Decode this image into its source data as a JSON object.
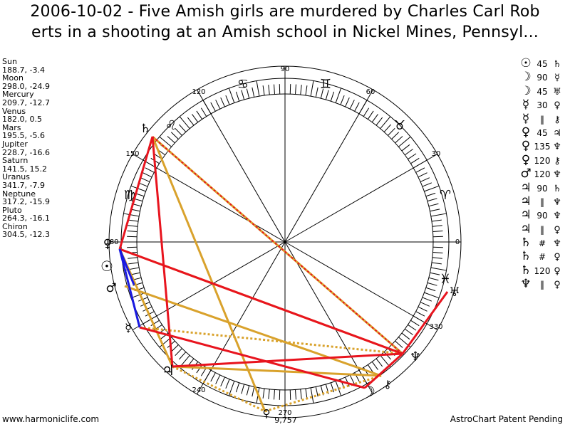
{
  "title": {
    "line1": "2006-10-02 - Five Amish girls are murdered by Charles Carl Rob",
    "line2": "erts in a shooting at an Amish school in Nickel Mines, Pennsyl..."
  },
  "positions": [
    {
      "name": "Sun",
      "value": "188.7, -3.4"
    },
    {
      "name": "Moon",
      "value": "298.0, -24.9"
    },
    {
      "name": "Mercury",
      "value": "209.7, -12.7"
    },
    {
      "name": "Venus",
      "value": "182.0, 0.5"
    },
    {
      "name": "Mars",
      "value": "195.5, -5.6"
    },
    {
      "name": "Jupiter",
      "value": "228.7, -16.6"
    },
    {
      "name": "Saturn",
      "value": "141.5, 15.2"
    },
    {
      "name": "Uranus",
      "value": "341.7, -7.9"
    },
    {
      "name": "Neptune",
      "value": "317.2, -15.9"
    },
    {
      "name": "Pluto",
      "value": "264.3, -16.1"
    },
    {
      "name": "Chiron",
      "value": "304.5, -12.3"
    }
  ],
  "aspects": [
    {
      "p1": "☉",
      "angle": "45",
      "p2": "♄"
    },
    {
      "p1": "☽",
      "angle": "90",
      "p2": "☿"
    },
    {
      "p1": "☽",
      "angle": "45",
      "p2": "♅"
    },
    {
      "p1": "☿",
      "angle": "30",
      "p2": "♀"
    },
    {
      "p1": "☿",
      "angle": "‖",
      "p2": "⚷"
    },
    {
      "p1": "♀",
      "angle": "45",
      "p2": "♃"
    },
    {
      "p1": "♀",
      "angle": "135",
      "p2": "♆"
    },
    {
      "p1": "♀",
      "angle": "120",
      "p2": "⚷"
    },
    {
      "p1": "♂",
      "angle": "120",
      "p2": "♆"
    },
    {
      "p1": "♃",
      "angle": "90",
      "p2": "♄"
    },
    {
      "p1": "♃",
      "angle": "‖",
      "p2": "♆"
    },
    {
      "p1": "♃",
      "angle": "90",
      "p2": "♆"
    },
    {
      "p1": "♃",
      "angle": "‖",
      "p2": "♀"
    },
    {
      "p1": "♄",
      "angle": "#",
      "p2": "♆"
    },
    {
      "p1": "♄",
      "angle": "#",
      "p2": "♀"
    },
    {
      "p1": "♄",
      "angle": "120",
      "p2": "♀"
    },
    {
      "p1": "♆",
      "angle": "‖",
      "p2": "♀"
    }
  ],
  "wheel": {
    "degree_labels": [
      "0",
      "30",
      "60",
      "90",
      "120",
      "150",
      "180",
      "240",
      "270",
      "330"
    ],
    "signs": [
      "♈",
      "♉",
      "♊",
      "♋",
      "♌",
      "♍",
      "♎",
      "♏",
      "♐",
      "♑",
      "♒",
      "♓"
    ],
    "planet_glyphs": {
      "sun": "☉",
      "moon": "☽",
      "mercury": "☿",
      "venus": "♀",
      "mars": "♂",
      "jupiter": "♃",
      "saturn": "♄",
      "uranus": "♅",
      "neptune": "♆",
      "pluto": "♀",
      "chiron": "⚷"
    },
    "pluto_extra": "9,757",
    "line_colors": {
      "hard": "#e8141e",
      "soft": "#d9a22c",
      "conjunct": "#1a1ae0"
    }
  },
  "footer": {
    "left": "www.harmoniclife.com",
    "right": "AstroChart Patent Pending"
  }
}
